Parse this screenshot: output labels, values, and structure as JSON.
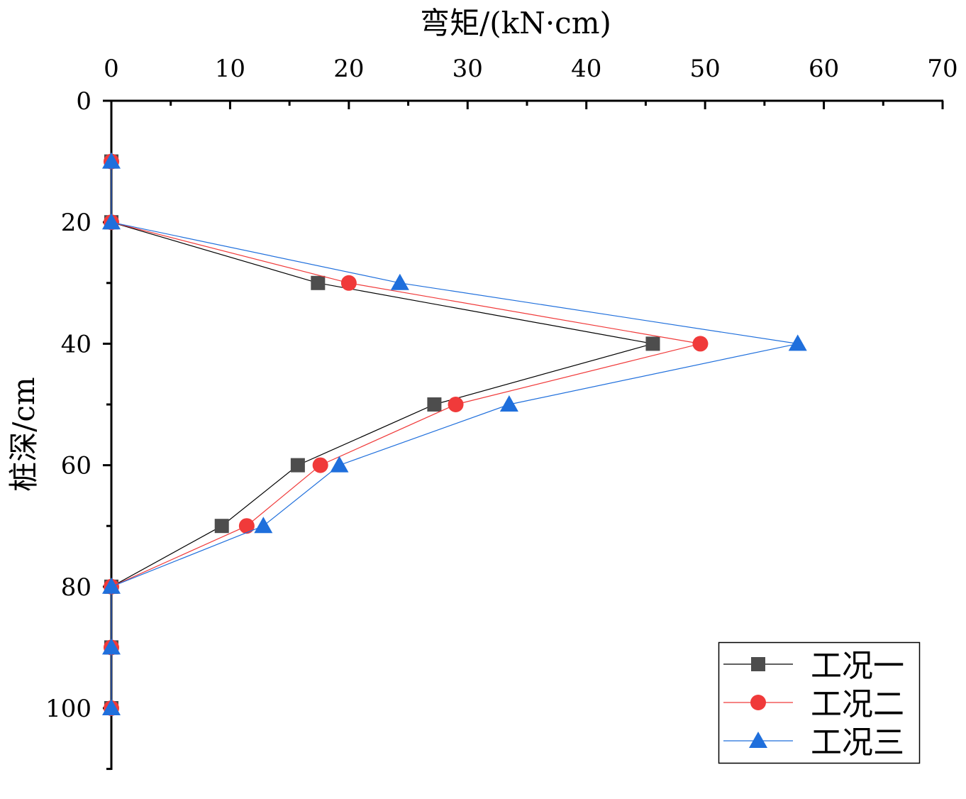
{
  "chart_data": {
    "type": "line",
    "title": "",
    "xlabel": "弯矩/(kN·cm)",
    "ylabel": "桩深/cm",
    "xlim": [
      0,
      70
    ],
    "ylim": [
      0,
      110
    ],
    "x_axis_position": "top",
    "y_inverted": true,
    "x_ticks": [
      0,
      10,
      20,
      30,
      40,
      50,
      60,
      70
    ],
    "y_ticks": [
      0,
      20,
      40,
      60,
      80,
      100
    ],
    "grid": false,
    "legend_position": "bottom-right",
    "depth": [
      10,
      20,
      30,
      40,
      50,
      60,
      70,
      80,
      90,
      100
    ],
    "series": [
      {
        "name": "工况一",
        "marker": "square",
        "color": "#4d4d4d",
        "line_color": "#000000",
        "values": [
          0,
          0,
          17.4,
          45.6,
          27.2,
          15.7,
          9.3,
          0,
          0,
          0
        ]
      },
      {
        "name": "工况二",
        "marker": "circle",
        "color": "#f03a3a",
        "line_color": "#f03a3a",
        "values": [
          0,
          0,
          20.0,
          49.6,
          29.0,
          17.6,
          11.4,
          0,
          0,
          0
        ]
      },
      {
        "name": "工况三",
        "marker": "triangle",
        "color": "#1f6fdc",
        "line_color": "#1f6fdc",
        "values": [
          0,
          0,
          24.3,
          57.8,
          33.5,
          19.2,
          12.8,
          0,
          0,
          0
        ]
      }
    ]
  }
}
